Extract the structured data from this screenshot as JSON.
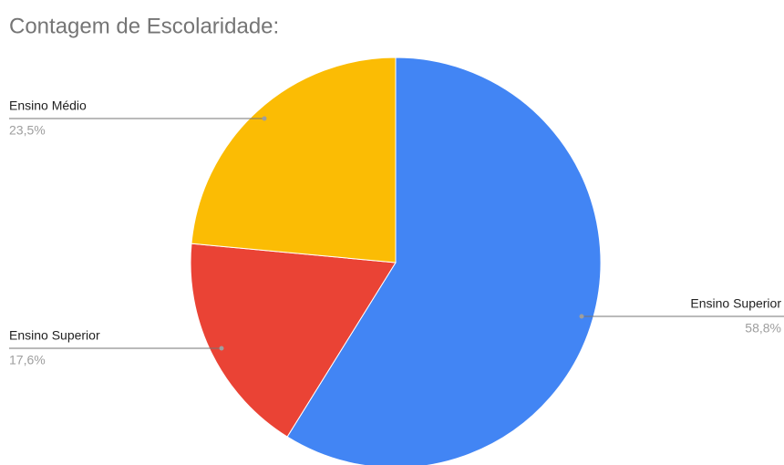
{
  "chart_data": {
    "type": "pie",
    "title": "Contagem de Escolaridade:",
    "categories": [
      "Ensino Superior",
      "Ensino Superior",
      "Ensino Médio"
    ],
    "values": [
      58.8,
      17.6,
      23.5
    ],
    "value_labels": [
      "58,8%",
      "17,6%",
      "23,5%"
    ],
    "colors": [
      "#4285f4",
      "#ea4335",
      "#fbbc04"
    ]
  }
}
